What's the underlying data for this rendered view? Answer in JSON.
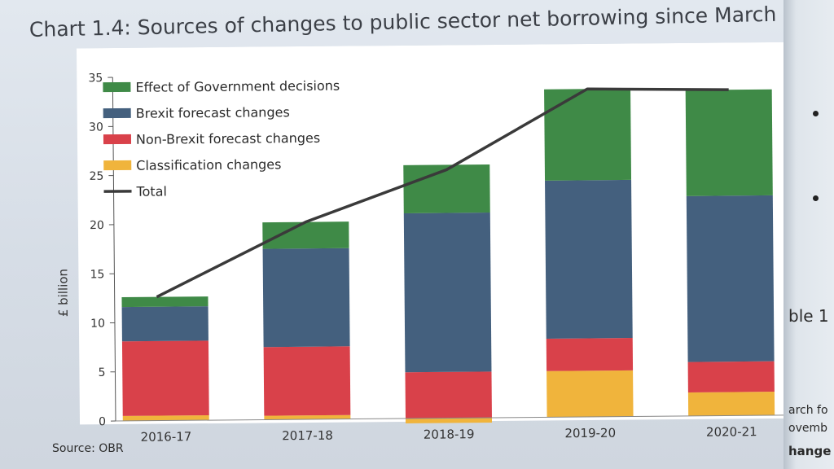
{
  "title": "Chart 1.4: Sources of changes to public sector net borrowing since March",
  "source": "Source: OBR",
  "right_margin": {
    "text1": "ble 1",
    "text2": "arch fo",
    "text3": "ovemb",
    "text4": "hange"
  },
  "colors": {
    "government": "#3f8a47",
    "brexit": "#44607e",
    "nonbrexit": "#d9414a",
    "classification": "#f0b43c",
    "total": "#3a3a3a"
  },
  "chart_data": {
    "type": "bar",
    "stacked": true,
    "title": "Chart 1.4: Sources of changes to public sector net borrowing since March",
    "ylabel": "£ billion",
    "xlabel": "",
    "ylim": [
      0,
      35
    ],
    "yticks": [
      0,
      5,
      10,
      15,
      20,
      25,
      30,
      35
    ],
    "categories": [
      "2016-17",
      "2017-18",
      "2018-19",
      "2019-20",
      "2020-21"
    ],
    "series": [
      {
        "name": "Effect of Government decisions",
        "color_key": "government",
        "values": [
          1.0,
          2.7,
          4.9,
          9.3,
          10.8
        ]
      },
      {
        "name": "Brexit forecast changes",
        "color_key": "brexit",
        "values": [
          3.5,
          10.0,
          16.2,
          16.1,
          16.9
        ]
      },
      {
        "name": "Non-Brexit forecast changes",
        "color_key": "nonbrexit",
        "values": [
          7.6,
          7.0,
          4.7,
          3.3,
          3.1
        ]
      },
      {
        "name": "Classification changes",
        "color_key": "classification",
        "values": [
          0.5,
          0.4,
          -0.5,
          4.7,
          2.4
        ]
      }
    ],
    "total": {
      "name": "Total",
      "values": [
        12.6,
        20.1,
        25.3,
        33.4,
        33.2
      ]
    },
    "legend_position": "top-left",
    "grid": false
  }
}
